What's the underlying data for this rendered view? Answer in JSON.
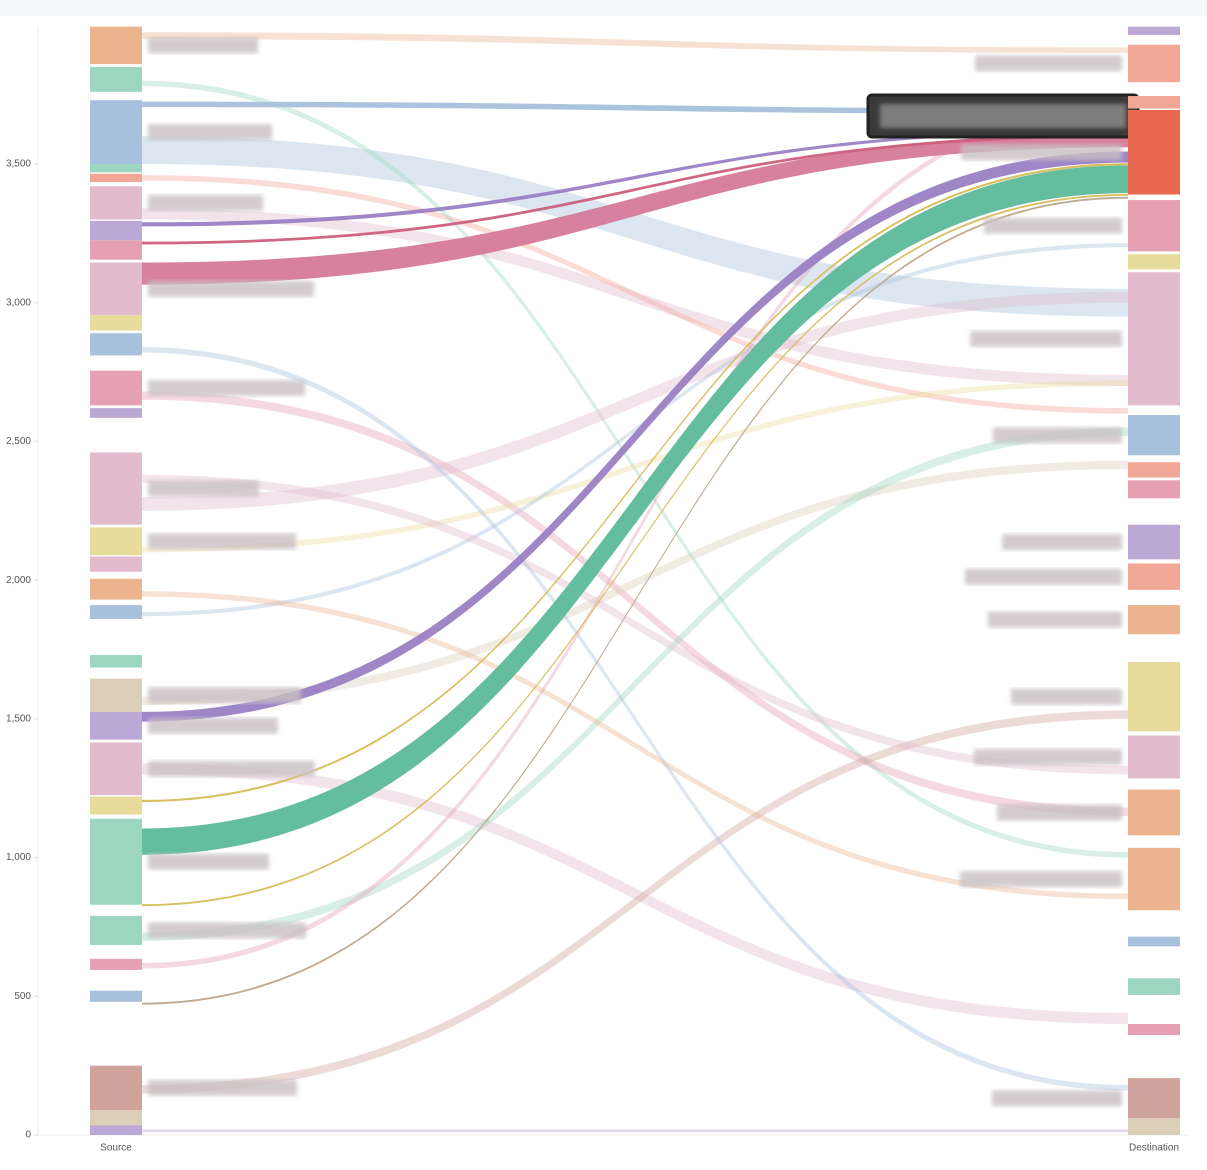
{
  "chart_data": {
    "type": "sankey",
    "categories": [
      "Source",
      "Destination"
    ],
    "ylim": [
      0,
      4000
    ],
    "yticks": [
      0,
      500,
      {
        "value": 1000,
        "label": "1,000"
      },
      {
        "value": 1500,
        "label": "1,500"
      },
      {
        "value": 2000,
        "label": "2,000"
      },
      {
        "value": 2500,
        "label": "2,500"
      },
      {
        "value": 3000,
        "label": "3,000"
      },
      {
        "value": 3500,
        "label": "3,500"
      }
    ],
    "source_nodes": [
      {
        "color": "#ebb48e",
        "start": 3860,
        "end": 3995
      },
      {
        "color": "#9dd6c0",
        "start": 3760,
        "end": 3850
      },
      {
        "color": "#a7c0dc",
        "start": 3500,
        "end": 3730
      },
      {
        "color": "#9dd6c0",
        "start": 3470,
        "end": 3500
      },
      {
        "color": "#f2a696",
        "start": 3435,
        "end": 3465
      },
      {
        "color": "#e2bccd",
        "start": 3300,
        "end": 3420
      },
      {
        "color": "#bca8d4",
        "start": 3225,
        "end": 3295
      },
      {
        "color": "#e6a0b4",
        "start": 3155,
        "end": 3225
      },
      {
        "color": "#e2bccd",
        "start": 2955,
        "end": 3145
      },
      {
        "color": "#e8dc9c",
        "start": 2900,
        "end": 2955
      },
      {
        "color": "#a7c0dc",
        "start": 2810,
        "end": 2890
      },
      {
        "color": "#e6a0b4",
        "start": 2630,
        "end": 2755
      },
      {
        "color": "#bca8d4",
        "start": 2585,
        "end": 2620
      },
      {
        "color": "#e2bccd",
        "start": 2200,
        "end": 2460
      },
      {
        "color": "#e8dc9c",
        "start": 2090,
        "end": 2190
      },
      {
        "color": "#e2bccd",
        "start": 2030,
        "end": 2085
      },
      {
        "color": "#ebb48e",
        "start": 1930,
        "end": 2005
      },
      {
        "color": "#a7c0dc",
        "start": 1860,
        "end": 1910
      },
      {
        "color": "#9dd6c0",
        "start": 1685,
        "end": 1730
      },
      {
        "color": "#dccfb8",
        "start": 1525,
        "end": 1645
      },
      {
        "color": "#bca8d4",
        "start": 1425,
        "end": 1525
      },
      {
        "color": "#e2bccd",
        "start": 1225,
        "end": 1415
      },
      {
        "color": "#e8dc9c",
        "start": 1155,
        "end": 1220
      },
      {
        "color": "#9dd6c0",
        "start": 830,
        "end": 1140
      },
      {
        "color": "#9dd6c0",
        "start": 685,
        "end": 790
      },
      {
        "color": "#e6a0b4",
        "start": 595,
        "end": 635
      },
      {
        "color": "#a7c0dc",
        "start": 480,
        "end": 520
      },
      {
        "color": "#cfa39c",
        "start": 90,
        "end": 250
      },
      {
        "color": "#dccfb8",
        "start": 35,
        "end": 90
      },
      {
        "color": "#bca8d4",
        "start": 0,
        "end": 35
      }
    ],
    "destination_nodes": [
      {
        "color": "#bca8d4",
        "start": 3965,
        "end": 3995
      },
      {
        "color": "#f2a696",
        "start": 3795,
        "end": 3930
      },
      {
        "color": "#f2a696",
        "start": 3700,
        "end": 3745
      },
      {
        "color": "#e8694f",
        "start": 3390,
        "end": 3695
      },
      {
        "color": "#e6a0b4",
        "start": 3185,
        "end": 3370
      },
      {
        "color": "#e8dc9c",
        "start": 3120,
        "end": 3175
      },
      {
        "color": "#e2bccd",
        "start": 2630,
        "end": 3110
      },
      {
        "color": "#a7c0dc",
        "start": 2450,
        "end": 2595
      },
      {
        "color": "#f2a696",
        "start": 2370,
        "end": 2425
      },
      {
        "color": "#e6a0b4",
        "start": 2295,
        "end": 2360
      },
      {
        "color": "#bca8d4",
        "start": 2075,
        "end": 2200
      },
      {
        "color": "#f2a696",
        "start": 1965,
        "end": 2060
      },
      {
        "color": "#ebb48e",
        "start": 1805,
        "end": 1910
      },
      {
        "color": "#e8dc9c",
        "start": 1455,
        "end": 1705
      },
      {
        "color": "#e2bccd",
        "start": 1285,
        "end": 1440
      },
      {
        "color": "#ebb48e",
        "start": 1080,
        "end": 1245
      },
      {
        "color": "#ebb48e",
        "start": 810,
        "end": 1035
      },
      {
        "color": "#a7c0dc",
        "start": 680,
        "end": 715
      },
      {
        "color": "#9dd6c0",
        "start": 505,
        "end": 565
      },
      {
        "color": "#e6a0b4",
        "start": 360,
        "end": 400
      },
      {
        "color": "#cfa39c",
        "start": 60,
        "end": 205
      },
      {
        "color": "#dccfb8",
        "start": 0,
        "end": 60
      }
    ],
    "flows": [
      {
        "color": "#ebb48e",
        "source": [
          3950,
          3975
        ],
        "destination": [
          3900,
          3920
        ]
      },
      {
        "color": "#a7c0dc",
        "source": [
          3500,
          3600
        ],
        "destination": [
          2950,
          3050
        ]
      },
      {
        "color": "#e2bccd",
        "source": [
          3300,
          3340
        ],
        "destination": [
          2700,
          2740
        ]
      },
      {
        "color": "#f2a696",
        "source": [
          3440,
          3460
        ],
        "destination": [
          2600,
          2620
        ]
      },
      {
        "color": "#9dd6c0",
        "source": [
          3780,
          3800
        ],
        "destination": [
          1000,
          1020
        ]
      },
      {
        "color": "#e6a0b4",
        "source": [
          2650,
          2680
        ],
        "destination": [
          1150,
          1180
        ]
      },
      {
        "color": "#e2bccd",
        "source": [
          2250,
          2300
        ],
        "destination": [
          3000,
          3040
        ]
      },
      {
        "color": "#e8dc9c",
        "source": [
          2100,
          2120
        ],
        "destination": [
          2700,
          2720
        ]
      },
      {
        "color": "#a7c0dc",
        "source": [
          1870,
          1885
        ],
        "destination": [
          3200,
          3215
        ]
      },
      {
        "color": "#dccfb8",
        "source": [
          1550,
          1580
        ],
        "destination": [
          2400,
          2430
        ]
      },
      {
        "color": "#e2bccd",
        "source": [
          1300,
          1340
        ],
        "destination": [
          400,
          440
        ]
      },
      {
        "color": "#9dd6c0",
        "source": [
          700,
          730
        ],
        "destination": [
          2520,
          2550
        ]
      },
      {
        "color": "#cfa39c",
        "source": [
          150,
          180
        ],
        "destination": [
          1500,
          1530
        ]
      },
      {
        "color": "#e6a0b4",
        "source": [
          600,
          620
        ],
        "destination": [
          3700,
          3720
        ]
      },
      {
        "color": "#ebb48e",
        "source": [
          1940,
          1960
        ],
        "destination": [
          850,
          870
        ]
      },
      {
        "color": "#bca8d4",
        "source": [
          10,
          20
        ],
        "destination": [
          10,
          20
        ]
      },
      {
        "color": "#e2bccd",
        "source": [
          2350,
          2380
        ],
        "destination": [
          1300,
          1330
        ]
      },
      {
        "color": "#a7c0dc",
        "source": [
          2820,
          2840
        ],
        "destination": [
          160,
          180
        ]
      },
      {
        "color": "#a7c0dc",
        "source": [
          3705,
          3725
        ],
        "destination": [
          3680,
          3700
        ]
      },
      {
        "color": "#d57a9a",
        "source": [
          3065,
          3145
        ],
        "destination": [
          3560,
          3610
        ]
      },
      {
        "color": "#9a7fc4",
        "source": [
          3275,
          3290
        ],
        "destination": [
          3615,
          3625
        ]
      },
      {
        "color": "#cc5f7d",
        "source": [
          3210,
          3220
        ],
        "destination": [
          3595,
          3605
        ]
      },
      {
        "color": "#9a7fc4",
        "source": [
          1490,
          1525
        ],
        "destination": [
          3505,
          3545
        ]
      },
      {
        "color": "#5db99a",
        "source": [
          1010,
          1105
        ],
        "destination": [
          3395,
          3495
        ]
      },
      {
        "color": "#d6bd5a",
        "source": [
          1200,
          1208
        ],
        "destination": [
          3495,
          3503
        ]
      },
      {
        "color": "#d6bd5a",
        "source": [
          825,
          832
        ],
        "destination": [
          3385,
          3392
        ]
      },
      {
        "color": "#bca48a",
        "source": [
          470,
          477
        ],
        "destination": [
          3375,
          3382
        ]
      }
    ]
  }
}
